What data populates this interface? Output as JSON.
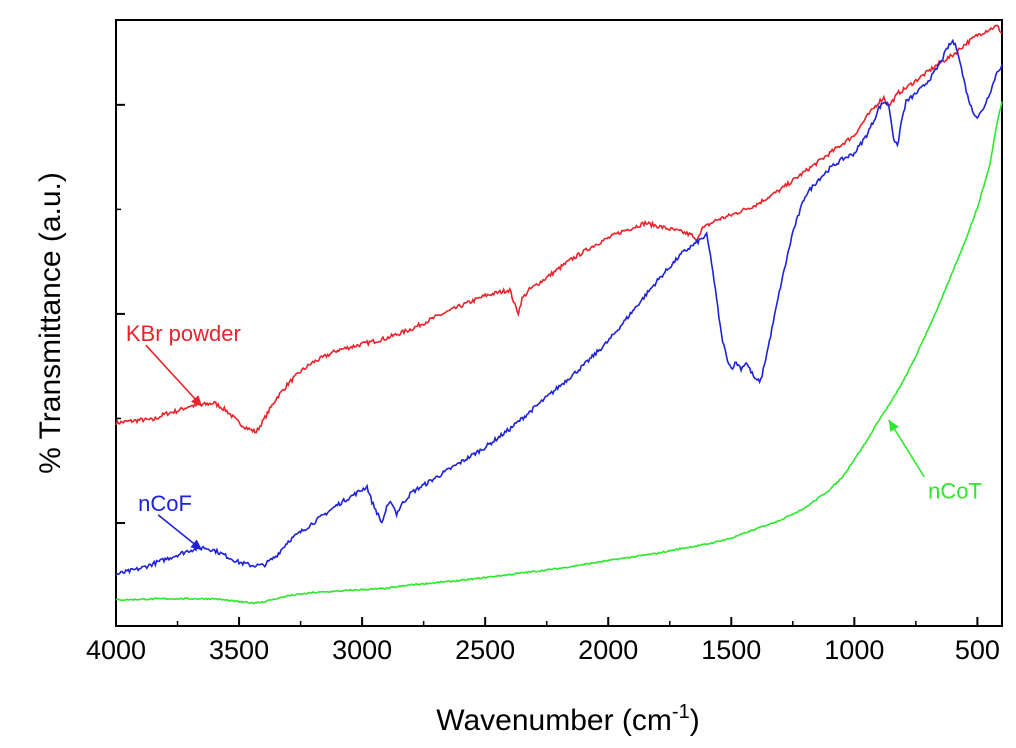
{
  "chart_data": {
    "type": "line",
    "title": "",
    "xlabel": "Wavenumber (cm",
    "xlabel_sup": "-1",
    "xlabel_close": ")",
    "ylabel": "% Transmittance (a.u.)",
    "xlim": [
      4000,
      400
    ],
    "ylim": [
      0,
      100
    ],
    "x_reversed": true,
    "x_ticks": [
      4000,
      3500,
      3000,
      2500,
      2000,
      1500,
      1000,
      500
    ],
    "x_tick_labels": [
      "4000",
      "3500",
      "3000",
      "2500",
      "2000",
      "1500",
      "1000",
      "500"
    ],
    "y_ticks": [
      17,
      51.5,
      86
    ],
    "y_tick_labels_shown": false,
    "grid": false,
    "legend": "none",
    "series": [
      {
        "name": "KBr powder",
        "color": "#e8232a",
        "x": [
          4000,
          3900,
          3850,
          3800,
          3750,
          3700,
          3650,
          3600,
          3550,
          3500,
          3460,
          3430,
          3400,
          3350,
          3300,
          3250,
          3200,
          3150,
          3100,
          3000,
          2900,
          2800,
          2700,
          2600,
          2500,
          2400,
          2380,
          2365,
          2350,
          2320,
          2250,
          2150,
          2050,
          1950,
          1850,
          1750,
          1700,
          1660,
          1645,
          1620,
          1560,
          1500,
          1400,
          1300,
          1200,
          1100,
          1000,
          950,
          900,
          880,
          860,
          820,
          800,
          750,
          700,
          650,
          600,
          550,
          500,
          450,
          420,
          400
        ],
        "y": [
          33.5,
          34,
          34,
          35,
          35.5,
          36.3,
          36.5,
          36.8,
          35.5,
          33.5,
          32.5,
          32,
          34,
          37.5,
          40,
          42,
          43.5,
          44.5,
          45.5,
          46.5,
          47.5,
          49,
          51,
          52.8,
          54.5,
          55.5,
          53,
          51.7,
          54,
          55.5,
          57.5,
          60.5,
          63,
          65,
          66.5,
          65.5,
          65,
          64.5,
          63.5,
          65.5,
          67,
          67.8,
          69.5,
          72,
          75,
          78,
          81,
          84,
          86.5,
          87.2,
          85.8,
          88,
          88.5,
          90,
          91.5,
          93,
          94.2,
          96,
          97.5,
          98.5,
          99,
          97.8
        ]
      },
      {
        "name": "nCoF",
        "color": "#1e22d8",
        "x": [
          4000,
          3900,
          3800,
          3700,
          3650,
          3600,
          3550,
          3500,
          3450,
          3400,
          3350,
          3300,
          3200,
          3100,
          3000,
          2980,
          2960,
          2920,
          2900,
          2880,
          2860,
          2840,
          2800,
          2700,
          2600,
          2500,
          2400,
          2300,
          2200,
          2100,
          2000,
          1900,
          1800,
          1700,
          1650,
          1600,
          1580,
          1560,
          1540,
          1520,
          1500,
          1480,
          1460,
          1440,
          1420,
          1400,
          1380,
          1350,
          1300,
          1250,
          1200,
          1150,
          1100,
          1050,
          1000,
          950,
          920,
          900,
          880,
          860,
          840,
          825,
          810,
          790,
          760,
          720,
          680,
          650,
          620,
          600,
          580,
          560,
          540,
          520,
          500,
          480,
          460,
          440,
          420,
          400
        ],
        "y": [
          8.5,
          9.5,
          11,
          12.5,
          13,
          12.5,
          11.5,
          10.5,
          10,
          10,
          11.5,
          14,
          17,
          20,
          22.5,
          23,
          20.5,
          17,
          19.5,
          20.5,
          18.5,
          20,
          22,
          24.5,
          27,
          29.5,
          32.5,
          36,
          39.5,
          43,
          47,
          52,
          57,
          61.5,
          63,
          64.5,
          60,
          54,
          48,
          44.5,
          42.5,
          43.5,
          42.5,
          43.5,
          42,
          40.5,
          40.5,
          46,
          56,
          65,
          71,
          73.5,
          75.5,
          77,
          78,
          81,
          83.5,
          85.5,
          86.5,
          86,
          80.5,
          79,
          83,
          86.5,
          87.5,
          89,
          91,
          93,
          95.5,
          96.5,
          95,
          91,
          87.5,
          85,
          84,
          85,
          87,
          89,
          91.5,
          92.5
        ]
      },
      {
        "name": "nCoT",
        "color": "#2ee82b",
        "x": [
          4000,
          3800,
          3600,
          3500,
          3450,
          3400,
          3300,
          3200,
          3000,
          2900,
          2800,
          2600,
          2400,
          2200,
          2000,
          1800,
          1700,
          1600,
          1500,
          1400,
          1300,
          1200,
          1100,
          1050,
          1000,
          950,
          900,
          850,
          800,
          750,
          700,
          650,
          600,
          550,
          500,
          450,
          420,
          400
        ],
        "y": [
          4.3,
          4.5,
          4.5,
          4,
          3.8,
          4,
          5,
          5.5,
          6,
          6.2,
          6.8,
          7.5,
          8.5,
          9.5,
          10.8,
          12,
          12.8,
          13.5,
          14.5,
          16,
          17.5,
          19.5,
          22.5,
          24.5,
          27.5,
          30.5,
          34,
          37,
          40.5,
          44.5,
          49,
          53.5,
          58.5,
          63.5,
          69,
          76,
          83,
          86.5
        ]
      }
    ],
    "annotations": [
      {
        "text": "KBr powder",
        "color": "#e8232a",
        "target_x": 3650,
        "target_y": 36.2,
        "text_x": 3960,
        "text_y": 47
      },
      {
        "text": "nCoF",
        "color": "#1e22d8",
        "target_x": 3650,
        "target_y": 12.5,
        "text_x": 3910,
        "text_y": 19
      },
      {
        "text": "nCoT",
        "color": "#2ee82b",
        "target_x": 860,
        "target_y": 34,
        "text_x": 700,
        "text_y": 21
      }
    ]
  }
}
